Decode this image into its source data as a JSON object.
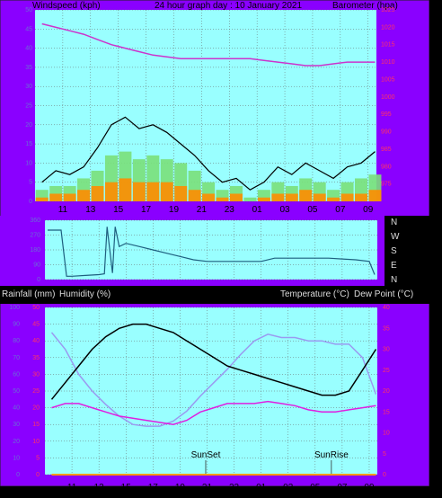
{
  "colors": {
    "background": "#000000",
    "frame": "#8a00ff",
    "plot_bg": "#99ffff",
    "grid": "#666666",
    "wind_gust": "#000000",
    "wind_avg": "#7ae07a",
    "wind_low": "#ff8c00",
    "barometer": "#cc33cc",
    "direction": "#1f5f7f",
    "temperature": "#000000",
    "humidity": "#9a9af0",
    "dew_point": "#e01ee0",
    "rain": "#ff9900",
    "tick_left": "#6b6bd6",
    "tick_right": "#ff3366"
  },
  "header": {
    "left": "Windspeed (kph)",
    "center": "24 hour graph day : 10 January 2021",
    "right": "Barometer (hpa)"
  },
  "mid_header": {
    "left1": "Rainfall (mm)",
    "left2": "Humidity (%)",
    "right1": "Temperature (°C)",
    "right2": "Dew Point (°C)"
  },
  "x_ticks": [
    "11",
    "13",
    "15",
    "17",
    "19",
    "21",
    "23",
    "01",
    "03",
    "05",
    "07",
    "09"
  ],
  "annotations": [
    "SunSet",
    "SunRise"
  ],
  "chart_data": [
    {
      "type": "line",
      "name_wind": "Windspeed (kph)",
      "ylabel_left": "Windspeed (kph)",
      "ylabel_right": "Barometer (hpa)",
      "ylim_left": [
        0,
        50
      ],
      "y_ticks_left": [
        "0",
        "5",
        "10",
        "15",
        "20",
        "25",
        "30",
        "35",
        "40",
        "45",
        "50"
      ],
      "ylim_right": [
        970,
        1025
      ],
      "y_ticks_right": [
        "975",
        "980",
        "985",
        "990",
        "995",
        "1000",
        "1005",
        "1010",
        "1015",
        "1020",
        "1025"
      ],
      "hours": [
        9.5,
        10.5,
        11.5,
        12.5,
        13.5,
        14.5,
        15.5,
        16.5,
        17.5,
        18.5,
        19.5,
        20.5,
        21.5,
        22.5,
        23.5,
        24.5,
        25.5,
        26.5,
        27.5,
        28.5,
        29.5,
        30.5,
        31.5,
        32.5,
        33.5
      ],
      "wind_gust": [
        5,
        8,
        7,
        9,
        14,
        20,
        22,
        19,
        20,
        18,
        15,
        12,
        8,
        5,
        6,
        3,
        5,
        9,
        7,
        10,
        8,
        6,
        9,
        10,
        13
      ],
      "wind_avg": [
        3,
        4,
        4,
        6,
        8,
        12,
        13,
        11,
        12,
        11,
        10,
        8,
        5,
        3,
        4,
        1,
        3,
        5,
        4,
        6,
        5,
        3,
        5,
        6,
        7
      ],
      "wind_low": [
        1,
        2,
        2,
        3,
        4,
        5,
        6,
        5,
        5,
        5,
        4,
        3,
        2,
        1,
        2,
        0,
        1,
        2,
        2,
        3,
        2,
        1,
        2,
        2,
        3
      ],
      "barometer": [
        1021,
        1020,
        1019,
        1018,
        1016.5,
        1015,
        1014,
        1013,
        1012,
        1011.5,
        1011,
        1011,
        1011,
        1011,
        1011,
        1011,
        1010.5,
        1010,
        1009.5,
        1009,
        1009,
        1009.5,
        1010,
        1010,
        1010
      ]
    },
    {
      "type": "line",
      "ylabel_right": "N W S E N",
      "compass": [
        "N",
        "W",
        "S",
        "E",
        "N"
      ],
      "y_ticks_left": [
        "360",
        "270",
        "180",
        "90",
        "0"
      ],
      "ylim": [
        0,
        360
      ],
      "hours": [
        9.2,
        10.0,
        10.2,
        10.6,
        11.0,
        12.0,
        13.0,
        13.4,
        13.6,
        14.0,
        14.2,
        14.5,
        15.0,
        16.0,
        17.0,
        18.0,
        19.0,
        20.0,
        21.0,
        22.0,
        23.0,
        24.0,
        25.0,
        26.0,
        27.0,
        28.0,
        29.0,
        30.0,
        31.0,
        32.0,
        33.0,
        33.4
      ],
      "direction": [
        300,
        300,
        300,
        20,
        20,
        25,
        30,
        35,
        320,
        40,
        320,
        200,
        220,
        200,
        180,
        160,
        140,
        120,
        110,
        110,
        110,
        110,
        110,
        130,
        130,
        130,
        130,
        130,
        125,
        120,
        110,
        30
      ]
    },
    {
      "type": "line",
      "ylabel_left": "Humidity (%)",
      "ylabel_left2": "Rainfall (mm)",
      "ylabel_right": "Temperature (°C)",
      "ylabel_right2": "Dew Point (°C)",
      "ylim_left": [
        0,
        100
      ],
      "y_ticks_left": [
        "0",
        "10",
        "20",
        "30",
        "40",
        "50",
        "60",
        "70",
        "80",
        "90",
        "100"
      ],
      "ylim_rain": [
        0,
        50
      ],
      "y_ticks_rain": [
        "0",
        "5",
        "10",
        "15",
        "20",
        "25",
        "30",
        "35",
        "40",
        "45",
        "50"
      ],
      "ylim_right": [
        0,
        40
      ],
      "y_ticks_right": [
        "0",
        "5",
        "10",
        "15",
        "20",
        "25",
        "30",
        "35",
        "40"
      ],
      "hours": [
        9.5,
        10.5,
        11.5,
        12.5,
        13.5,
        14.5,
        15.5,
        16.5,
        17.5,
        18.5,
        19.5,
        20.5,
        21.5,
        22.5,
        23.5,
        24.5,
        25.5,
        26.5,
        27.5,
        28.5,
        29.5,
        30.5,
        31.5,
        32.5,
        33.5
      ],
      "temperature": [
        18,
        22,
        26,
        30,
        33,
        35,
        36,
        36,
        35,
        34,
        32,
        30,
        28,
        26,
        25,
        24,
        23,
        22,
        21,
        20,
        19,
        19,
        20,
        25,
        30
      ],
      "humidity": [
        85,
        75,
        60,
        50,
        42,
        35,
        30,
        29,
        29,
        32,
        38,
        47,
        55,
        63,
        72,
        80,
        84,
        82,
        82,
        80,
        80,
        78,
        78,
        70,
        48
      ],
      "dew_point": [
        16,
        17,
        17,
        16,
        15,
        14,
        13.5,
        13,
        12.5,
        12,
        13,
        15,
        16,
        17,
        17,
        17,
        17.5,
        17,
        16.5,
        15.5,
        15,
        15,
        15.5,
        16,
        16.5
      ],
      "rain": [
        0,
        0,
        0,
        0,
        0,
        0,
        0,
        0,
        0,
        0,
        0,
        0,
        0,
        0,
        0,
        0,
        0,
        0,
        0,
        0,
        0,
        0,
        0,
        0,
        0
      ],
      "sunset_hour": 20.9,
      "sunrise_hour": 30.2
    }
  ]
}
